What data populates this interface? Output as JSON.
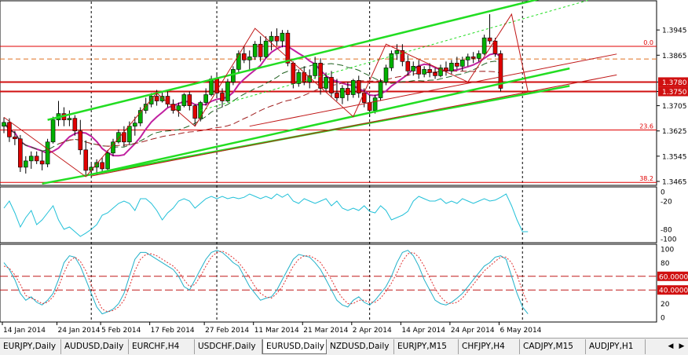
{
  "chart_data": [
    {
      "type": "line",
      "symbol": "EURUSD",
      "timeframe": "Daily",
      "style": "candlestick",
      "ylim": [
        1.3455,
        1.4035
      ],
      "price_labels": [
        "1.3945",
        "1.3865",
        "1.3780",
        "1.3750",
        "1.3705",
        "1.3625",
        "1.3545",
        "1.3465"
      ],
      "highlighted_levels": [
        {
          "label": "1.3780",
          "value": 1.378
        },
        {
          "label": "1.3750",
          "value": 1.375
        }
      ],
      "fib_levels": [
        {
          "label": "0.0",
          "value": 1.3893
        },
        {
          "label": "23.6",
          "value": 1.3628
        },
        {
          "label": "38.2",
          "value": 1.3462
        }
      ],
      "candles": [
        {
          "o": 1.364,
          "h": 1.3668,
          "l": 1.3618,
          "c": 1.3652
        },
        {
          "o": 1.3652,
          "h": 1.3665,
          "l": 1.359,
          "c": 1.3606
        },
        {
          "o": 1.3606,
          "h": 1.3625,
          "l": 1.358,
          "c": 1.36
        },
        {
          "o": 1.36,
          "h": 1.3612,
          "l": 1.3495,
          "c": 1.351
        },
        {
          "o": 1.351,
          "h": 1.3545,
          "l": 1.349,
          "c": 1.353
        },
        {
          "o": 1.353,
          "h": 1.356,
          "l": 1.3505,
          "c": 1.3545
        },
        {
          "o": 1.3545,
          "h": 1.356,
          "l": 1.352,
          "c": 1.353
        },
        {
          "o": 1.353,
          "h": 1.356,
          "l": 1.35,
          "c": 1.352
        },
        {
          "o": 1.352,
          "h": 1.36,
          "l": 1.351,
          "c": 1.359
        },
        {
          "o": 1.359,
          "h": 1.367,
          "l": 1.3585,
          "c": 1.366
        },
        {
          "o": 1.366,
          "h": 1.372,
          "l": 1.364,
          "c": 1.368
        },
        {
          "o": 1.368,
          "h": 1.37,
          "l": 1.364,
          "c": 1.366
        },
        {
          "o": 1.366,
          "h": 1.369,
          "l": 1.364,
          "c": 1.3665
        },
        {
          "o": 1.3665,
          "h": 1.3675,
          "l": 1.361,
          "c": 1.3625
        },
        {
          "o": 1.3625,
          "h": 1.366,
          "l": 1.355,
          "c": 1.3565
        },
        {
          "o": 1.3565,
          "h": 1.3595,
          "l": 1.348,
          "c": 1.35
        },
        {
          "o": 1.35,
          "h": 1.352,
          "l": 1.348,
          "c": 1.351
        },
        {
          "o": 1.351,
          "h": 1.3535,
          "l": 1.3485,
          "c": 1.3525
        },
        {
          "o": 1.3525,
          "h": 1.354,
          "l": 1.3495,
          "c": 1.3505
        },
        {
          "o": 1.3505,
          "h": 1.3565,
          "l": 1.35,
          "c": 1.3555
        },
        {
          "o": 1.3555,
          "h": 1.36,
          "l": 1.3545,
          "c": 1.359
        },
        {
          "o": 1.359,
          "h": 1.363,
          "l": 1.3585,
          "c": 1.362
        },
        {
          "o": 1.362,
          "h": 1.364,
          "l": 1.3575,
          "c": 1.359
        },
        {
          "o": 1.359,
          "h": 1.3655,
          "l": 1.358,
          "c": 1.364
        },
        {
          "o": 1.364,
          "h": 1.367,
          "l": 1.361,
          "c": 1.365
        },
        {
          "o": 1.365,
          "h": 1.37,
          "l": 1.364,
          "c": 1.369
        },
        {
          "o": 1.369,
          "h": 1.373,
          "l": 1.368,
          "c": 1.371
        },
        {
          "o": 1.371,
          "h": 1.3745,
          "l": 1.37,
          "c": 1.3735
        },
        {
          "o": 1.3735,
          "h": 1.3755,
          "l": 1.3705,
          "c": 1.372
        },
        {
          "o": 1.372,
          "h": 1.375,
          "l": 1.3715,
          "c": 1.3735
        },
        {
          "o": 1.3735,
          "h": 1.3755,
          "l": 1.37,
          "c": 1.371
        },
        {
          "o": 1.371,
          "h": 1.3725,
          "l": 1.368,
          "c": 1.369
        },
        {
          "o": 1.369,
          "h": 1.3715,
          "l": 1.367,
          "c": 1.3705
        },
        {
          "o": 1.3705,
          "h": 1.3745,
          "l": 1.37,
          "c": 1.374
        },
        {
          "o": 1.374,
          "h": 1.375,
          "l": 1.369,
          "c": 1.3705
        },
        {
          "o": 1.3705,
          "h": 1.371,
          "l": 1.364,
          "c": 1.3665
        },
        {
          "o": 1.3665,
          "h": 1.372,
          "l": 1.3655,
          "c": 1.3715
        },
        {
          "o": 1.3715,
          "h": 1.376,
          "l": 1.3705,
          "c": 1.374
        },
        {
          "o": 1.374,
          "h": 1.38,
          "l": 1.3735,
          "c": 1.379
        },
        {
          "o": 1.379,
          "h": 1.381,
          "l": 1.373,
          "c": 1.3745
        },
        {
          "o": 1.3745,
          "h": 1.376,
          "l": 1.37,
          "c": 1.372
        },
        {
          "o": 1.372,
          "h": 1.379,
          "l": 1.3715,
          "c": 1.378
        },
        {
          "o": 1.378,
          "h": 1.383,
          "l": 1.377,
          "c": 1.382
        },
        {
          "o": 1.382,
          "h": 1.388,
          "l": 1.381,
          "c": 1.387
        },
        {
          "o": 1.387,
          "h": 1.3895,
          "l": 1.384,
          "c": 1.385
        },
        {
          "o": 1.385,
          "h": 1.388,
          "l": 1.382,
          "c": 1.386
        },
        {
          "o": 1.386,
          "h": 1.391,
          "l": 1.385,
          "c": 1.39
        },
        {
          "o": 1.39,
          "h": 1.3925,
          "l": 1.3845,
          "c": 1.386
        },
        {
          "o": 1.386,
          "h": 1.3925,
          "l": 1.3855,
          "c": 1.391
        },
        {
          "o": 1.391,
          "h": 1.394,
          "l": 1.388,
          "c": 1.3925
        },
        {
          "o": 1.3925,
          "h": 1.395,
          "l": 1.3895,
          "c": 1.391
        },
        {
          "o": 1.391,
          "h": 1.3945,
          "l": 1.389,
          "c": 1.3935
        },
        {
          "o": 1.3935,
          "h": 1.3945,
          "l": 1.383,
          "c": 1.384
        },
        {
          "o": 1.384,
          "h": 1.3845,
          "l": 1.376,
          "c": 1.3775
        },
        {
          "o": 1.3775,
          "h": 1.382,
          "l": 1.3765,
          "c": 1.381
        },
        {
          "o": 1.381,
          "h": 1.383,
          "l": 1.377,
          "c": 1.378
        },
        {
          "o": 1.378,
          "h": 1.382,
          "l": 1.376,
          "c": 1.38
        },
        {
          "o": 1.38,
          "h": 1.386,
          "l": 1.379,
          "c": 1.384
        },
        {
          "o": 1.384,
          "h": 1.3855,
          "l": 1.374,
          "c": 1.376
        },
        {
          "o": 1.376,
          "h": 1.381,
          "l": 1.375,
          "c": 1.3795
        },
        {
          "o": 1.3795,
          "h": 1.3815,
          "l": 1.373,
          "c": 1.3745
        },
        {
          "o": 1.3745,
          "h": 1.379,
          "l": 1.372,
          "c": 1.373
        },
        {
          "o": 1.373,
          "h": 1.377,
          "l": 1.371,
          "c": 1.376
        },
        {
          "o": 1.376,
          "h": 1.378,
          "l": 1.372,
          "c": 1.374
        },
        {
          "o": 1.374,
          "h": 1.379,
          "l": 1.373,
          "c": 1.3785
        },
        {
          "o": 1.3785,
          "h": 1.38,
          "l": 1.373,
          "c": 1.3745
        },
        {
          "o": 1.3745,
          "h": 1.376,
          "l": 1.37,
          "c": 1.3715
        },
        {
          "o": 1.3715,
          "h": 1.374,
          "l": 1.367,
          "c": 1.369
        },
        {
          "o": 1.369,
          "h": 1.374,
          "l": 1.368,
          "c": 1.373
        },
        {
          "o": 1.373,
          "h": 1.379,
          "l": 1.372,
          "c": 1.378
        },
        {
          "o": 1.378,
          "h": 1.3835,
          "l": 1.377,
          "c": 1.3825
        },
        {
          "o": 1.3825,
          "h": 1.388,
          "l": 1.3815,
          "c": 1.387
        },
        {
          "o": 1.387,
          "h": 1.39,
          "l": 1.385,
          "c": 1.388
        },
        {
          "o": 1.388,
          "h": 1.39,
          "l": 1.383,
          "c": 1.3845
        },
        {
          "o": 1.3845,
          "h": 1.3865,
          "l": 1.38,
          "c": 1.3815
        },
        {
          "o": 1.3815,
          "h": 1.3845,
          "l": 1.38,
          "c": 1.383
        },
        {
          "o": 1.383,
          "h": 1.385,
          "l": 1.379,
          "c": 1.3805
        },
        {
          "o": 1.3805,
          "h": 1.383,
          "l": 1.3795,
          "c": 1.382
        },
        {
          "o": 1.382,
          "h": 1.384,
          "l": 1.3795,
          "c": 1.381
        },
        {
          "o": 1.381,
          "h": 1.3825,
          "l": 1.379,
          "c": 1.38
        },
        {
          "o": 1.38,
          "h": 1.3835,
          "l": 1.3795,
          "c": 1.3825
        },
        {
          "o": 1.3825,
          "h": 1.3845,
          "l": 1.38,
          "c": 1.3815
        },
        {
          "o": 1.3815,
          "h": 1.385,
          "l": 1.3805,
          "c": 1.384
        },
        {
          "o": 1.384,
          "h": 1.386,
          "l": 1.382,
          "c": 1.383
        },
        {
          "o": 1.383,
          "h": 1.386,
          "l": 1.3815,
          "c": 1.385
        },
        {
          "o": 1.385,
          "h": 1.387,
          "l": 1.383,
          "c": 1.386
        },
        {
          "o": 1.386,
          "h": 1.3875,
          "l": 1.384,
          "c": 1.3855
        },
        {
          "o": 1.3855,
          "h": 1.388,
          "l": 1.3845,
          "c": 1.387
        },
        {
          "o": 1.387,
          "h": 1.393,
          "l": 1.3865,
          "c": 1.392
        },
        {
          "o": 1.392,
          "h": 1.3995,
          "l": 1.39,
          "c": 1.391
        },
        {
          "o": 1.391,
          "h": 1.392,
          "l": 1.386,
          "c": 1.387
        },
        {
          "o": 1.387,
          "h": 1.388,
          "l": 1.375,
          "c": 1.376
        }
      ]
    },
    {
      "type": "line",
      "indicator": "oscillator (0 to -100)",
      "ylim": [
        -100,
        0
      ],
      "tick_labels": [
        "0",
        "-20",
        "-80",
        "-100"
      ],
      "series": [
        {
          "color": "#20c0d8",
          "values": [
            -35,
            -20,
            -45,
            -75,
            -55,
            -40,
            -70,
            -60,
            -45,
            -30,
            -60,
            -80,
            -75,
            -85,
            -95,
            -88,
            -80,
            -70,
            -50,
            -45,
            -35,
            -25,
            -20,
            -25,
            -40,
            -15,
            -15,
            -25,
            -40,
            -60,
            -45,
            -35,
            -20,
            -15,
            -20,
            -35,
            -25,
            -15,
            -10,
            -15,
            -10,
            -15,
            -12,
            -15,
            -12,
            -5,
            -10,
            -15,
            -10,
            -15,
            -5,
            -12,
            -5,
            -20,
            -25,
            -15,
            -20,
            -25,
            -20,
            -15,
            -30,
            -20,
            -35,
            -40,
            -35,
            -40,
            -30,
            -42,
            -45,
            -30,
            -40,
            -60,
            -55,
            -50,
            -42,
            -20,
            -10,
            -15,
            -20,
            -20,
            -15,
            -25,
            -20,
            -25,
            -15,
            -20,
            -25,
            -20,
            -15,
            -20,
            -18,
            -12,
            -5,
            -30,
            -60,
            -85,
            -85
          ]
        }
      ]
    },
    {
      "type": "line",
      "indicator": "stochastic",
      "ylim": [
        0,
        100
      ],
      "tick_labels": [
        "100",
        "80",
        "60.0000",
        "40.0000",
        "20",
        "0"
      ],
      "levels": [
        {
          "label": "60.0000",
          "value": 60
        },
        {
          "label": "40.0000",
          "value": 40
        }
      ],
      "series": [
        {
          "color": "#20b0c8",
          "values": [
            80,
            70,
            55,
            35,
            25,
            30,
            22,
            18,
            25,
            35,
            55,
            80,
            90,
            88,
            75,
            55,
            35,
            15,
            5,
            8,
            12,
            20,
            35,
            60,
            85,
            95,
            95,
            90,
            85,
            80,
            75,
            70,
            60,
            45,
            40,
            55,
            70,
            85,
            95,
            98,
            95,
            88,
            80,
            75,
            60,
            45,
            35,
            25,
            28,
            30,
            40,
            55,
            70,
            85,
            92,
            90,
            88,
            80,
            70,
            55,
            40,
            25,
            18,
            15,
            25,
            30,
            22,
            18,
            25,
            35,
            45,
            60,
            80,
            95,
            98,
            90,
            75,
            55,
            40,
            25,
            20,
            18,
            22,
            28,
            35,
            45,
            55,
            65,
            75,
            80,
            88,
            90,
            85,
            60,
            35,
            15,
            5
          ]
        },
        {
          "color": "#e03030",
          "values": [
            75,
            72,
            62,
            48,
            32,
            28,
            25,
            20,
            22,
            30,
            45,
            65,
            82,
            88,
            82,
            68,
            48,
            28,
            12,
            8,
            10,
            15,
            25,
            45,
            68,
            85,
            92,
            93,
            90,
            85,
            80,
            75,
            67,
            55,
            45,
            48,
            60,
            75,
            88,
            95,
            97,
            93,
            87,
            80,
            70,
            58,
            45,
            35,
            30,
            28,
            35,
            45,
            60,
            75,
            85,
            90,
            90,
            86,
            80,
            68,
            55,
            40,
            28,
            20,
            20,
            25,
            25,
            22,
            22,
            28,
            38,
            50,
            65,
            82,
            93,
            95,
            88,
            75,
            58,
            42,
            30,
            22,
            20,
            22,
            28,
            38,
            48,
            58,
            68,
            75,
            82,
            88,
            88,
            80,
            62,
            38,
            20
          ]
        }
      ]
    }
  ],
  "x_axis_labels": [
    "14 Jan 2014",
    "24 Jan 2014",
    "5 Feb 2014",
    "17 Feb 2014",
    "27 Feb 2014",
    "11 Mar 2014",
    "21 Mar 2014",
    "2 Apr 2014",
    "14 Apr 2014",
    "24 Apr 2014",
    "6 May 2014"
  ],
  "tabs": [
    {
      "label": "EURJPY,Daily",
      "active": false
    },
    {
      "label": "AUDUSD,Daily",
      "active": false
    },
    {
      "label": "EURCHF,H4",
      "active": false
    },
    {
      "label": "USDCHF,Daily",
      "active": false
    },
    {
      "label": "EURUSD,Daily",
      "active": true
    },
    {
      "label": "NZDUSD,Daily",
      "active": false
    },
    {
      "label": "EURJPY,M15",
      "active": false
    },
    {
      "label": "CHFJPY,H4",
      "active": false
    },
    {
      "label": "CADJPY,M15",
      "active": false
    },
    {
      "label": "AUDJPY,H1",
      "active": false
    }
  ],
  "scroll_icons": {
    "left": "◀",
    "right": "▶"
  },
  "colors": {
    "bull": "#00b000",
    "bear": "#e00000",
    "channel": "#22dd22",
    "fib": "#e00000",
    "ma_magenta": "#c020a0",
    "ma_dark": "#206020",
    "level_box": "#d01010",
    "osc": "#20c0d8",
    "stoch_signal": "#e03030"
  }
}
